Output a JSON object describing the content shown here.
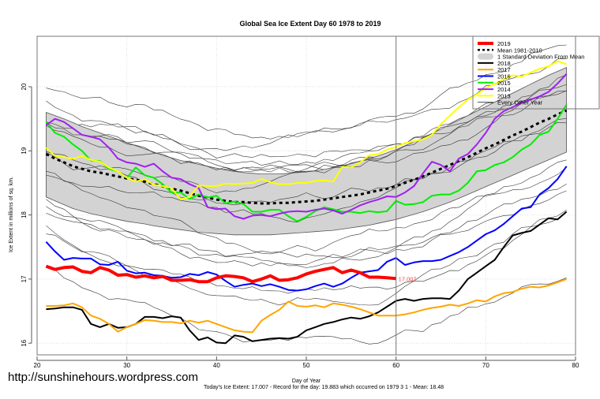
{
  "watermark": "http://sunshinehours.wordpress.com",
  "footer": "Today's Ice Extent: 17.007  - Record for the day: 19.883 which occurred on 1979 3 1  - Mean: 18.48",
  "chart_data": {
    "type": "line",
    "title": "Global Sea Ice Extent Day 60 1978 to 2019",
    "xlabel": "Day of Year",
    "ylabel": "Ice Extent in millions of sq. km.",
    "xlim": [
      20,
      80
    ],
    "ylim": [
      15.8,
      20.8
    ],
    "xticks": [
      20,
      30,
      40,
      50,
      60,
      70,
      80
    ],
    "yticks": [
      16,
      17,
      18,
      19,
      20
    ],
    "grid": true,
    "legend_position": "top-right",
    "current_day_marker": 60,
    "current_value_label": "17.007",
    "legend": [
      {
        "label": "2019",
        "color": "#ff0000",
        "style": "thick"
      },
      {
        "label": "Mean 1981-2010",
        "color": "#000000",
        "style": "dashed"
      },
      {
        "label": "1 Standard Deviation From Mean",
        "color": "#d3d3d3",
        "style": "band"
      },
      {
        "label": "2018",
        "color": "#000000",
        "style": "solid"
      },
      {
        "label": "2017",
        "color": "#ffa500",
        "style": "solid"
      },
      {
        "label": "2016",
        "color": "#0000ff",
        "style": "solid"
      },
      {
        "label": "2015",
        "color": "#00ee00",
        "style": "solid"
      },
      {
        "label": "2014",
        "color": "#a020f0",
        "style": "solid"
      },
      {
        "label": "2013",
        "color": "#ffff00",
        "style": "solid"
      },
      {
        "label": "Every Other Year",
        "color": "#333333",
        "style": "thin"
      }
    ],
    "x": [
      21,
      22,
      23,
      24,
      25,
      26,
      27,
      28,
      29,
      30,
      31,
      32,
      33,
      34,
      35,
      36,
      37,
      38,
      39,
      40,
      41,
      42,
      43,
      44,
      45,
      46,
      47,
      48,
      49,
      50,
      51,
      52,
      53,
      54,
      55,
      56,
      57,
      58,
      59,
      60,
      61,
      62,
      63,
      64,
      65,
      66,
      67,
      68,
      69,
      70,
      71,
      72,
      73,
      74,
      75,
      76,
      77,
      78,
      79
    ],
    "mean": [
      18.95,
      18.88,
      18.82,
      18.76,
      18.72,
      18.68,
      18.66,
      18.63,
      18.6,
      18.57,
      18.55,
      18.52,
      18.48,
      18.45,
      18.41,
      18.38,
      18.34,
      18.3,
      18.27,
      18.24,
      18.22,
      18.2,
      18.2,
      18.19,
      18.18,
      18.18,
      18.19,
      18.19,
      18.2,
      18.21,
      18.22,
      18.24,
      18.26,
      18.28,
      18.3,
      18.32,
      18.35,
      18.38,
      18.41,
      18.45,
      18.5,
      18.55,
      18.6,
      18.66,
      18.72,
      18.78,
      18.84,
      18.9,
      18.97,
      19.04,
      19.1,
      19.17,
      19.24,
      19.3,
      19.37,
      19.44,
      19.5,
      19.57,
      19.63
    ],
    "band_upper": [
      19.6,
      19.55,
      19.5,
      19.44,
      19.38,
      19.33,
      19.28,
      19.23,
      19.18,
      19.13,
      19.08,
      19.03,
      18.98,
      18.93,
      18.89,
      18.85,
      18.82,
      18.79,
      18.76,
      18.73,
      18.7,
      18.68,
      18.66,
      18.65,
      18.64,
      18.64,
      18.64,
      18.65,
      18.66,
      18.67,
      18.69,
      18.71,
      18.74,
      18.77,
      18.8,
      18.84,
      18.88,
      18.92,
      18.97,
      19.02,
      19.08,
      19.14,
      19.2,
      19.27,
      19.34,
      19.41,
      19.48,
      19.55,
      19.62,
      19.69,
      19.76,
      19.83,
      19.9,
      19.97,
      20.04,
      20.11,
      20.18,
      20.24,
      20.3
    ],
    "band_lower": [
      18.28,
      18.22,
      18.16,
      18.1,
      18.06,
      18.02,
      17.99,
      17.96,
      17.93,
      17.9,
      17.88,
      17.86,
      17.83,
      17.81,
      17.79,
      17.77,
      17.75,
      17.73,
      17.72,
      17.71,
      17.7,
      17.69,
      17.69,
      17.69,
      17.69,
      17.69,
      17.7,
      17.71,
      17.72,
      17.73,
      17.74,
      17.75,
      17.76,
      17.78,
      17.8,
      17.82,
      17.84,
      17.87,
      17.9,
      17.93,
      17.97,
      18.01,
      18.05,
      18.1,
      18.15,
      18.2,
      18.26,
      18.32,
      18.38,
      18.44,
      18.5,
      18.56,
      18.62,
      18.68,
      18.74,
      18.8,
      18.86,
      18.92,
      18.98
    ],
    "series": [
      {
        "name": "2019",
        "color": "#ff0000",
        "width": 4,
        "values": [
          17.2,
          17.15,
          17.18,
          17.19,
          17.12,
          17.1,
          17.18,
          17.14,
          17.06,
          17.07,
          17.03,
          17.05,
          17.02,
          17.04,
          16.98,
          16.98,
          16.99,
          16.96,
          16.96,
          17.02,
          17.05,
          17.04,
          17.02,
          16.96,
          17.0,
          17.05,
          16.98,
          16.99,
          17.02,
          17.08,
          17.12,
          17.15,
          17.18,
          17.1,
          17.14,
          17.1,
          17.03,
          17.03,
          17.02,
          17.007
        ]
      },
      {
        "name": "2018",
        "color": "#000000",
        "width": 2,
        "values": [
          16.53,
          16.54,
          16.56,
          16.56,
          16.52,
          16.3,
          16.25,
          16.3,
          16.24,
          16.25,
          16.3,
          16.41,
          16.41,
          16.39,
          16.42,
          16.4,
          16.2,
          16.05,
          16.09,
          16.01,
          16.0,
          16.12,
          16.1,
          16.03,
          16.05,
          16.07,
          16.08,
          16.07,
          16.1,
          16.2,
          16.25,
          16.3,
          16.33,
          16.37,
          16.4,
          16.38,
          16.42,
          16.48,
          16.57,
          16.66,
          16.69,
          16.66,
          16.69,
          16.7,
          16.7,
          16.69,
          16.82,
          17.0,
          17.1,
          17.2,
          17.3,
          17.5,
          17.68,
          17.72,
          17.75,
          17.85,
          17.95,
          17.93,
          18.05
        ]
      },
      {
        "name": "2017",
        "color": "#ffa500",
        "width": 2,
        "values": [
          16.58,
          16.58,
          16.59,
          16.62,
          16.56,
          16.43,
          16.38,
          16.3,
          16.18,
          16.25,
          16.3,
          16.36,
          16.35,
          16.33,
          16.33,
          16.31,
          16.35,
          16.32,
          16.35,
          16.3,
          16.25,
          16.2,
          16.18,
          16.17,
          16.35,
          16.44,
          16.52,
          16.65,
          16.58,
          16.57,
          16.59,
          16.56,
          16.62,
          16.6,
          16.57,
          16.53,
          16.48,
          16.43,
          16.43,
          16.43,
          16.45,
          16.48,
          16.52,
          16.55,
          16.57,
          16.6,
          16.58,
          16.62,
          16.67,
          16.65,
          16.73,
          16.78,
          16.8,
          16.85,
          16.88,
          16.87,
          16.9,
          16.95,
          17.0
        ]
      },
      {
        "name": "2016",
        "color": "#0000ff",
        "width": 2,
        "values": [
          17.58,
          17.43,
          17.3,
          17.33,
          17.32,
          17.32,
          17.23,
          17.22,
          17.27,
          17.13,
          17.09,
          17.1,
          17.06,
          17.05,
          17.02,
          17.03,
          17.08,
          17.06,
          17.11,
          17.07,
          16.97,
          16.88,
          16.91,
          16.93,
          16.89,
          16.92,
          16.88,
          16.83,
          16.82,
          16.84,
          16.89,
          16.93,
          16.88,
          16.93,
          17.02,
          17.1,
          17.12,
          17.14,
          17.27,
          17.33,
          17.22,
          17.26,
          17.28,
          17.28,
          17.3,
          17.36,
          17.42,
          17.5,
          17.6,
          17.7,
          17.76,
          17.86,
          17.98,
          18.1,
          18.12,
          18.32,
          18.42,
          18.56,
          18.76
        ]
      },
      {
        "name": "2015",
        "color": "#00ee00",
        "width": 2,
        "values": [
          19.45,
          19.28,
          19.22,
          19.1,
          19.0,
          18.85,
          18.84,
          18.72,
          18.68,
          18.58,
          18.74,
          18.62,
          18.58,
          18.48,
          18.35,
          18.35,
          18.25,
          18.32,
          18.27,
          18.3,
          18.18,
          18.21,
          18.17,
          18.05,
          18.05,
          18.08,
          18.08,
          17.98,
          17.9,
          17.97,
          18.06,
          18.12,
          18.09,
          18.05,
          18.05,
          18.03,
          18.06,
          18.04,
          18.06,
          18.22,
          18.16,
          18.17,
          18.2,
          18.3,
          18.32,
          18.32,
          18.38,
          18.5,
          18.68,
          18.7,
          18.78,
          18.82,
          18.9,
          19.02,
          19.1,
          19.25,
          19.3,
          19.5,
          19.72
        ]
      },
      {
        "name": "2014",
        "color": "#a020f0",
        "width": 2,
        "values": [
          19.4,
          19.5,
          19.45,
          19.35,
          19.25,
          19.22,
          19.18,
          19.05,
          18.88,
          18.82,
          18.8,
          18.75,
          18.8,
          18.68,
          18.58,
          18.56,
          18.48,
          18.42,
          18.12,
          18.09,
          18.1,
          17.98,
          17.94,
          17.99,
          18.0,
          17.98,
          18.02,
          18.05,
          18.06,
          18.05,
          18.08,
          18.1,
          18.07,
          18.02,
          18.08,
          18.15,
          18.2,
          18.24,
          18.29,
          18.28,
          18.35,
          18.45,
          18.65,
          18.83,
          18.78,
          18.68,
          18.88,
          18.95,
          19.1,
          19.28,
          19.5,
          19.62,
          19.68,
          19.75,
          19.8,
          19.85,
          19.92,
          20.05,
          20.2
        ]
      },
      {
        "name": "2013",
        "color": "#ffff00",
        "width": 2,
        "values": [
          19.05,
          18.92,
          18.9,
          18.88,
          18.92,
          18.86,
          18.83,
          18.74,
          18.68,
          18.58,
          18.52,
          18.56,
          18.47,
          18.45,
          18.42,
          18.24,
          18.28,
          18.46,
          18.45,
          18.45,
          18.49,
          18.48,
          18.49,
          18.5,
          18.56,
          18.51,
          18.48,
          18.48,
          18.5,
          18.5,
          18.53,
          18.54,
          18.52,
          18.75,
          18.74,
          18.82,
          18.93,
          18.95,
          19.02,
          19.06,
          19.12,
          19.15,
          19.18,
          19.25,
          19.42,
          19.55,
          19.68,
          19.8,
          19.88,
          19.98,
          20.04,
          20.12,
          20.18,
          20.16,
          20.22,
          20.28,
          20.32,
          20.4,
          20.35
        ]
      }
    ],
    "every_other_year_count": 20
  }
}
